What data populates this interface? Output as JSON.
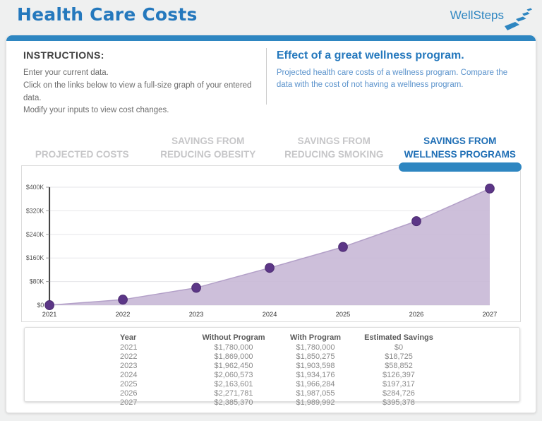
{
  "page": {
    "title": "Health Care Costs"
  },
  "logo": {
    "text": "WellSteps"
  },
  "instructions": {
    "heading": "INSTRUCTIONS:",
    "lines": [
      "Enter your current data.",
      "Click on the links below to view a full-size graph of your entered data.",
      "Modify your inputs to view cost changes."
    ]
  },
  "effect_panel": {
    "heading": "Effect of a great wellness program.",
    "body": "Projected health care costs of a wellness program. Compare the data with the cost of not having a wellness program."
  },
  "tabs": [
    {
      "label": "PROJECTED COSTS",
      "active": false
    },
    {
      "label": "SAVINGS FROM REDUCING OBESITY",
      "active": false
    },
    {
      "label": "SAVINGS FROM REDUCING SMOKING",
      "active": false
    },
    {
      "label": "SAVINGS FROM WELLNESS PROGRAMS",
      "active": true
    }
  ],
  "chart_data": {
    "type": "area",
    "title": "Savings from wellness programs",
    "x": [
      2021,
      2022,
      2023,
      2024,
      2025,
      2026,
      2027
    ],
    "series": [
      {
        "name": "Estimated Savings",
        "values": [
          0,
          18725,
          58852,
          126397,
          197317,
          284726,
          395378
        ]
      }
    ],
    "ylim": [
      0,
      400000
    ],
    "ytick_labels": [
      "$0",
      "$80K",
      "$160K",
      "$240K",
      "$320K",
      "$400K"
    ],
    "grid": true,
    "legend": "none",
    "area_color": "#c8b8d6",
    "line_color": "#b3a0c8",
    "point_color": "#5c3687",
    "axis_color": "#3b3b3b"
  },
  "table": {
    "headers": [
      "Year",
      "Without Program",
      "With Program",
      "Estimated Savings"
    ],
    "rows": [
      [
        "2021",
        "$1,780,000",
        "$1,780,000",
        "$0"
      ],
      [
        "2022",
        "$1,869,000",
        "$1,850,275",
        "$18,725"
      ],
      [
        "2023",
        "$1,962,450",
        "$1,903,598",
        "$58,852"
      ],
      [
        "2024",
        "$2,060,573",
        "$1,934,176",
        "$126,397"
      ],
      [
        "2025",
        "$2,163,601",
        "$1,966,284",
        "$197,317"
      ],
      [
        "2026",
        "$2,271,781",
        "$1,987,055",
        "$284,726"
      ],
      [
        "2027",
        "$2,385,370",
        "$1,989,992",
        "$395,378"
      ]
    ]
  },
  "colors": {
    "accent_blue": "#2e86c1",
    "title_blue": "#2478bd",
    "active_tab_blue": "#1e6eb5",
    "inactive_tab_gray": "#c6c6c8",
    "body_text_gray": "#6d6d6d",
    "effect_body_blue": "#5b93cc"
  }
}
